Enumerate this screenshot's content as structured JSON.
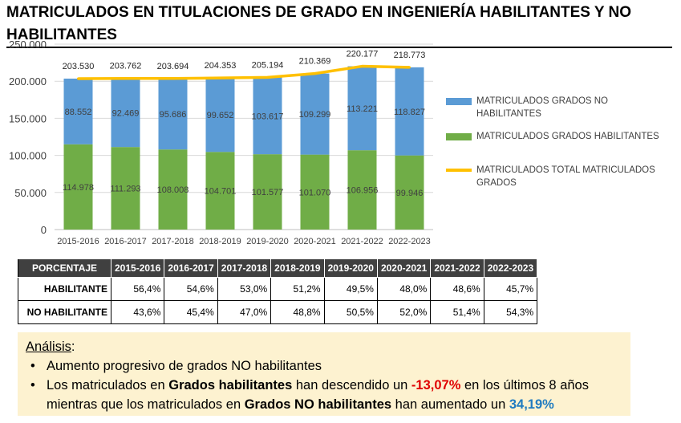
{
  "title": "MATRICULADOS EN TITULACIONES DE GRADO EN INGENIERÍA HABILITANTES Y NO HABILITANTES",
  "chart_data": {
    "type": "bar",
    "stacked": true,
    "categories": [
      "2015-2016",
      "2016-2017",
      "2017-2018",
      "2018-2019",
      "2019-2020",
      "2020-2021",
      "2021-2022",
      "2022-2023"
    ],
    "series": [
      {
        "name": "MATRICULADOS GRADOS  HABILITANTES",
        "kind": "bar",
        "color": "#70ad47",
        "values": [
          114978,
          111293,
          108008,
          104701,
          101577,
          101070,
          106956,
          99946
        ],
        "labels": [
          "114.978",
          "111.293",
          "108.008",
          "104.701",
          "101.577",
          "101.070",
          "106.956",
          "99.946"
        ]
      },
      {
        "name": "MATRICULADOS GRADOS  NO HABILITANTES",
        "kind": "bar",
        "color": "#5b9bd5",
        "values": [
          88552,
          92469,
          95686,
          99652,
          103617,
          109299,
          113221,
          118827
        ],
        "labels": [
          "88.552",
          "92.469",
          "95.686",
          "99.652",
          "103.617",
          "109.299",
          "113.221",
          "118.827"
        ]
      },
      {
        "name": "MATRICULADOS TOTAL MATRICULADOS GRADOS",
        "kind": "line",
        "color": "#ffc000",
        "values": [
          203530,
          203762,
          203694,
          204353,
          205194,
          210369,
          220177,
          218773
        ],
        "labels": [
          "203.530",
          "203.762",
          "203.694",
          "204.353",
          "205.194",
          "210.369",
          "220.177",
          "218.773"
        ]
      }
    ],
    "ylim": [
      0,
      250000
    ],
    "yticks": [
      0,
      50000,
      100000,
      150000,
      200000,
      250000
    ],
    "ytick_labels": [
      "0",
      "50.000",
      "100.000",
      "150.000",
      "200.000",
      "250.000"
    ],
    "grid": true,
    "legend_position": "right"
  },
  "legend": {
    "no_hab": "MATRICULADOS GRADOS  NO HABILITANTES",
    "hab": "MATRICULADOS GRADOS  HABILITANTES",
    "total": "MATRICULADOS TOTAL MATRICULADOS GRADOS"
  },
  "table": {
    "header": "PORCENTAJE",
    "years": [
      "2015-2016",
      "2016-2017",
      "2017-2018",
      "2018-2019",
      "2019-2020",
      "2020-2021",
      "2021-2022",
      "2022-2023"
    ],
    "rows": [
      {
        "label": "HABILITANTE",
        "values": [
          "56,4%",
          "54,6%",
          "53,0%",
          "51,2%",
          "49,5%",
          "48,0%",
          "48,6%",
          "45,7%"
        ]
      },
      {
        "label": "NO HABILITANTE",
        "values": [
          "43,6%",
          "45,4%",
          "47,0%",
          "48,8%",
          "50,5%",
          "52,0%",
          "51,4%",
          "54,3%"
        ]
      }
    ]
  },
  "analysis": {
    "title": "Análisis",
    "colon": ":",
    "bullet1": "Aumento progresivo de grados NO habilitantes",
    "b2_p1": "Los matriculados en ",
    "b2_bold1": "Grados habilitantes",
    "b2_p2": " han descendido un ",
    "b2_red": "-13,07%",
    "b2_p3": " en los últimos 8 años mientras que los matriculados en ",
    "b2_bold2": "Grados NO habilitantes",
    "b2_p4": " han aumentado un ",
    "b2_blue": "34,19%"
  }
}
